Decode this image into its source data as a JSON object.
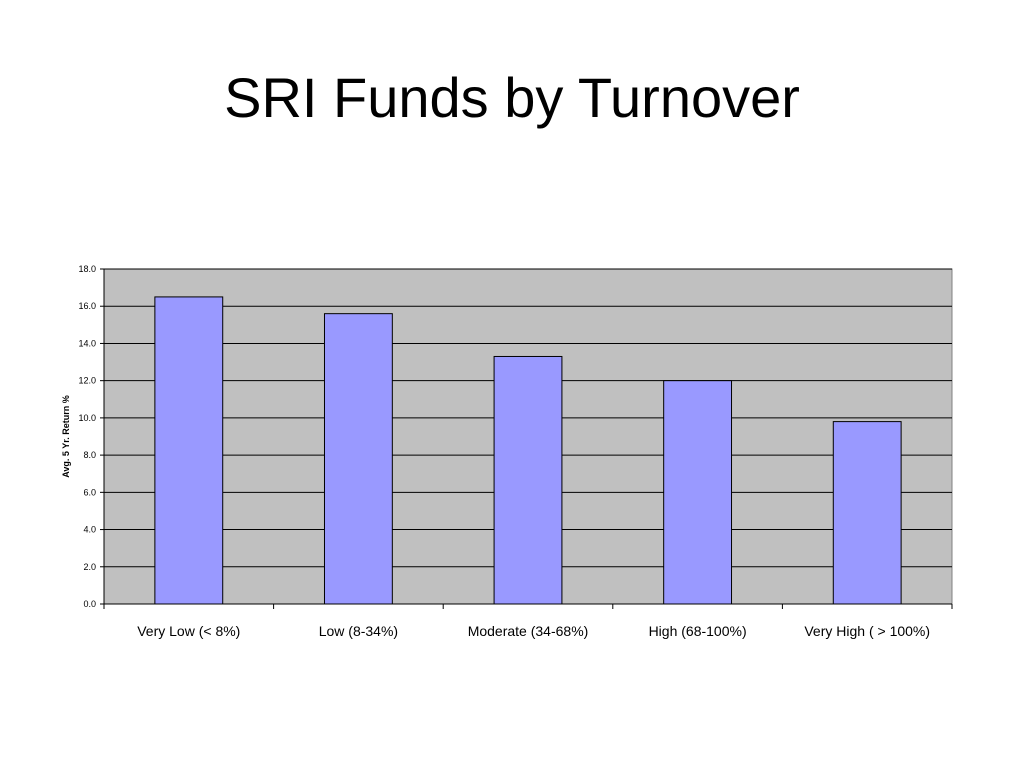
{
  "slide": {
    "title": "SRI Funds by Turnover"
  },
  "colors": {
    "plot_background": "#c0c0c0",
    "bar_fill": "#9999ff",
    "bar_stroke": "#000000",
    "gridline": "#000000"
  },
  "chart_data": {
    "type": "bar",
    "title": "",
    "xlabel": "",
    "ylabel": "Avg. 5 Yr. Return %",
    "categories": [
      "Very Low (< 8%)",
      "Low (8-34%)",
      "Moderate (34-68%)",
      "High (68-100%)",
      "Very High ( > 100%)"
    ],
    "values": [
      16.5,
      15.6,
      13.3,
      12.0,
      9.8
    ],
    "ylim": [
      0,
      18
    ],
    "yticks": [
      "0.0",
      "2.0",
      "4.0",
      "6.0",
      "8.0",
      "10.0",
      "12.0",
      "14.0",
      "16.0",
      "18.0"
    ],
    "grid": true,
    "legend": "none"
  }
}
